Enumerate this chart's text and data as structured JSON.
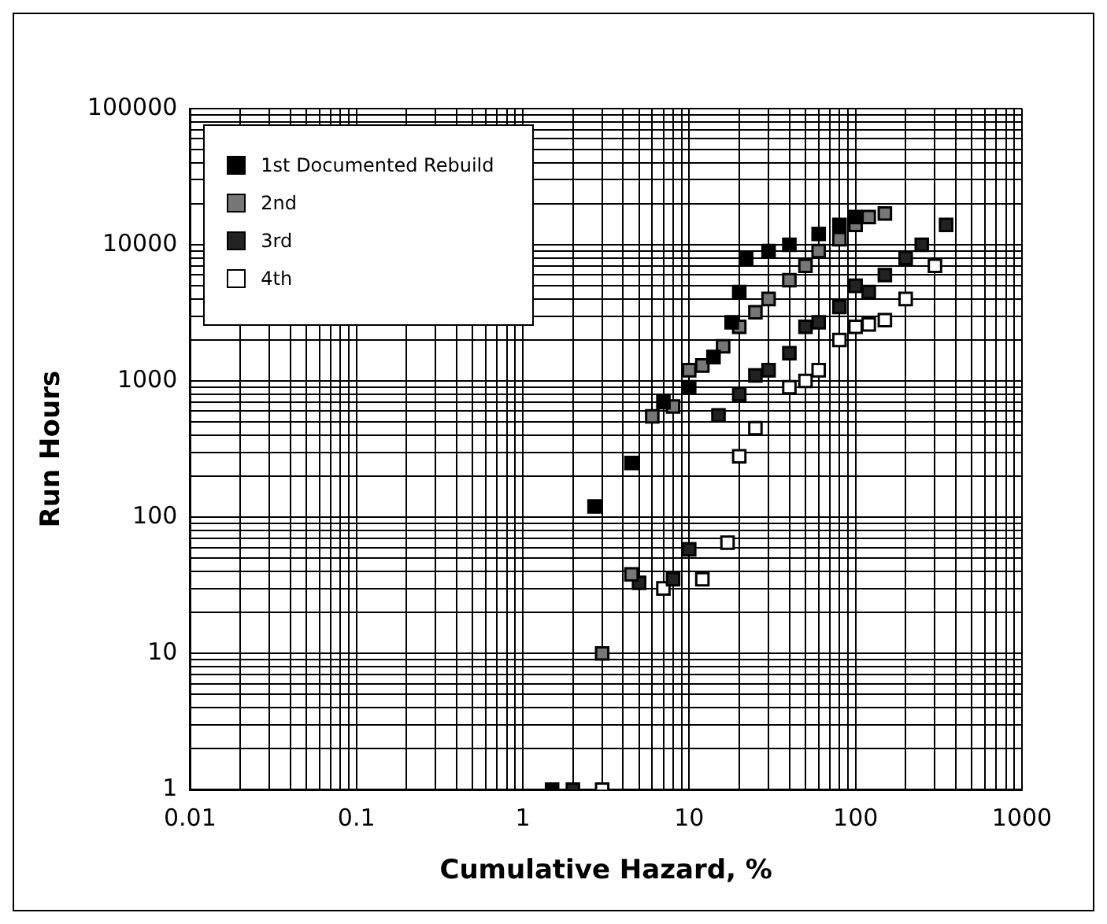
{
  "chart_data": {
    "type": "scatter",
    "xlabel": "Cumulative Hazard, %",
    "ylabel": "Run Hours",
    "log": "xy",
    "grid": true,
    "legend": "top left",
    "marker": "square",
    "xlim": [
      0.01,
      1000
    ],
    "ylim": [
      1,
      100000
    ],
    "xticks": [
      0.01,
      {
        "value": 0.02,
        "label": null
      },
      {
        "value": 0.03,
        "label": null
      },
      {
        "value": 0.04,
        "label": null
      },
      {
        "value": 0.05,
        "label": null
      },
      {
        "value": 0.06,
        "label": null
      },
      {
        "value": 0.07,
        "label": null
      },
      {
        "value": 0.08,
        "label": null
      },
      {
        "value": 0.09,
        "label": null
      },
      0.1,
      {
        "value": 0.2,
        "label": null
      },
      {
        "value": 0.3,
        "label": null
      },
      {
        "value": 0.4,
        "label": null
      },
      {
        "value": 0.5,
        "label": null
      },
      {
        "value": 0.6,
        "label": null
      },
      {
        "value": 0.7,
        "label": null
      },
      {
        "value": 0.8,
        "label": null
      },
      {
        "value": 0.9,
        "label": null
      },
      1,
      {
        "value": 2,
        "label": null
      },
      {
        "value": 3,
        "label": null
      },
      {
        "value": 4,
        "label": null
      },
      {
        "value": 5,
        "label": null
      },
      {
        "value": 6,
        "label": null
      },
      {
        "value": 7,
        "label": null
      },
      {
        "value": 8,
        "label": null
      },
      {
        "value": 9,
        "label": null
      },
      10,
      {
        "value": 20,
        "label": null
      },
      {
        "value": 30,
        "label": null
      },
      {
        "value": 40,
        "label": null
      },
      {
        "value": 50,
        "label": null
      },
      {
        "value": 60,
        "label": null
      },
      {
        "value": 70,
        "label": null
      },
      {
        "value": 80,
        "label": null
      },
      {
        "value": 90,
        "label": null
      },
      100,
      {
        "value": 200,
        "label": null
      },
      {
        "value": 300,
        "label": null
      },
      {
        "value": 400,
        "label": null
      },
      {
        "value": 500,
        "label": null
      },
      {
        "value": 600,
        "label": null
      },
      {
        "value": 700,
        "label": null
      },
      {
        "value": 800,
        "label": null
      },
      {
        "value": 900,
        "label": null
      },
      1000
    ],
    "yticks": [
      1,
      {
        "value": 2,
        "label": null
      },
      {
        "value": 3,
        "label": null
      },
      {
        "value": 4,
        "label": null
      },
      {
        "value": 5,
        "label": null
      },
      {
        "value": 6,
        "label": null
      },
      {
        "value": 7,
        "label": null
      },
      {
        "value": 8,
        "label": null
      },
      {
        "value": 9,
        "label": null
      },
      10,
      {
        "value": 20,
        "label": null
      },
      {
        "value": 30,
        "label": null
      },
      {
        "value": 40,
        "label": null
      },
      {
        "value": 50,
        "label": null
      },
      {
        "value": 60,
        "label": null
      },
      {
        "value": 70,
        "label": null
      },
      {
        "value": 80,
        "label": null
      },
      {
        "value": 90,
        "label": null
      },
      100,
      {
        "value": 200,
        "label": null
      },
      {
        "value": 300,
        "label": null
      },
      {
        "value": 400,
        "label": null
      },
      {
        "value": 500,
        "label": null
      },
      {
        "value": 600,
        "label": null
      },
      {
        "value": 700,
        "label": null
      },
      {
        "value": 800,
        "label": null
      },
      {
        "value": 900,
        "label": null
      },
      1000,
      {
        "value": 2000,
        "label": null
      },
      {
        "value": 3000,
        "label": null
      },
      {
        "value": 4000,
        "label": null
      },
      {
        "value": 5000,
        "label": null
      },
      {
        "value": 6000,
        "label": null
      },
      {
        "value": 7000,
        "label": null
      },
      {
        "value": 8000,
        "label": null
      },
      {
        "value": 9000,
        "label": null
      },
      10000,
      {
        "value": 20000,
        "label": null
      },
      {
        "value": 30000,
        "label": null
      },
      {
        "value": 40000,
        "label": null
      },
      {
        "value": 50000,
        "label": null
      },
      {
        "value": 60000,
        "label": null
      },
      {
        "value": 70000,
        "label": null
      },
      {
        "value": 80000,
        "label": null
      },
      {
        "value": 90000,
        "label": null
      },
      100000
    ],
    "series": [
      {
        "name": "1st Documented Rebuild",
        "color": "#000000",
        "x": [
          1.5,
          2.7,
          4.5,
          7,
          10,
          14,
          18,
          20,
          22,
          30,
          40,
          60,
          80,
          100
        ],
        "values": [
          1,
          120,
          250,
          700,
          900,
          1500,
          2700,
          4500,
          8000,
          9000,
          10000,
          12000,
          14000,
          16000
        ]
      },
      {
        "name": "2nd",
        "color": "#777777",
        "x": [
          3,
          4.5,
          6,
          8,
          10,
          12,
          16,
          20,
          25,
          30,
          40,
          50,
          60,
          80,
          100,
          120,
          150
        ],
        "values": [
          10,
          38,
          550,
          650,
          1200,
          1300,
          1800,
          2500,
          3200,
          4000,
          5500,
          7000,
          9000,
          11000,
          14000,
          16000,
          17000
        ]
      },
      {
        "name": "3rd",
        "color": "#222222",
        "x": [
          2,
          5,
          8,
          10,
          15,
          20,
          25,
          30,
          40,
          50,
          60,
          80,
          100,
          120,
          150,
          200,
          250,
          350
        ],
        "values": [
          1,
          33,
          35,
          58,
          560,
          800,
          1100,
          1200,
          1600,
          2500,
          2700,
          3500,
          5000,
          4500,
          6000,
          8000,
          10000,
          14000
        ]
      },
      {
        "name": "4th",
        "color": "#ffffff",
        "x": [
          3,
          7,
          12,
          17,
          20,
          25,
          40,
          50,
          60,
          80,
          100,
          120,
          150,
          200,
          300
        ],
        "values": [
          1,
          30,
          35,
          65,
          280,
          450,
          900,
          1000,
          1200,
          2000,
          2500,
          2600,
          2800,
          4000,
          7000
        ]
      }
    ]
  }
}
